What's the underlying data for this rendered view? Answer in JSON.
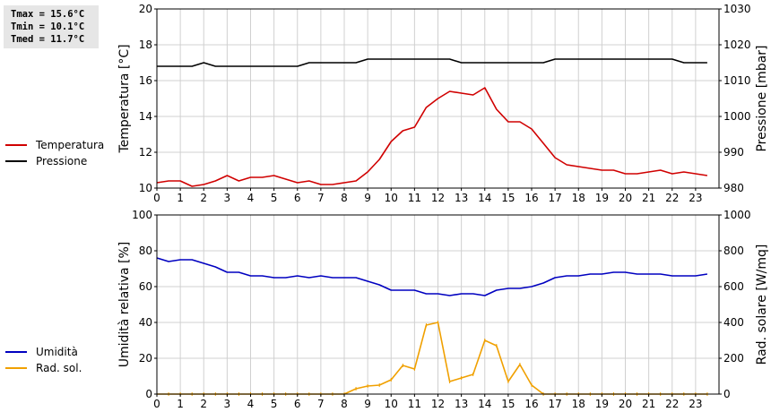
{
  "stats": {
    "tmax": "Tmax = 15.6°C",
    "tmin": "Tmin = 10.1°C",
    "tmed": "Tmed = 11.7°C"
  },
  "colors": {
    "temperature": "#d00000",
    "pressure": "#000000",
    "humidity": "#0000c0",
    "radiation": "#f0a000",
    "grid": "#d0d0d0"
  },
  "legend_top": [
    {
      "label": "Temperatura",
      "color": "#d00000"
    },
    {
      "label": "Pressione",
      "color": "#000000"
    }
  ],
  "legend_bottom": [
    {
      "label": "Umidità",
      "color": "#0000c0"
    },
    {
      "label": "Rad. sol.",
      "color": "#f0a000"
    }
  ],
  "chart_data": [
    {
      "type": "line",
      "xlabel": "",
      "xlim": [
        0,
        24
      ],
      "xticks": [
        "0",
        "1",
        "2",
        "3",
        "4",
        "5",
        "6",
        "7",
        "8",
        "9",
        "10",
        "11",
        "12",
        "13",
        "14",
        "15",
        "16",
        "17",
        "18",
        "19",
        "20",
        "21",
        "22",
        "23"
      ],
      "ylabel": "Temperatura [°C]",
      "ylim": [
        10,
        20
      ],
      "yticks": [
        "10",
        "12",
        "14",
        "16",
        "18",
        "20"
      ],
      "y2label": "Pressione [mbar]",
      "y2lim": [
        980,
        1030
      ],
      "y2ticks": [
        "980",
        "990",
        "1000",
        "1010",
        "1020",
        "1030"
      ],
      "grid": true,
      "legend": "left",
      "series": [
        {
          "name": "Temperatura",
          "axis": "left",
          "x": [
            0,
            0.5,
            1,
            1.5,
            2,
            2.5,
            3,
            3.5,
            4,
            4.5,
            5,
            5.5,
            6,
            6.5,
            7,
            7.5,
            8,
            8.5,
            9,
            9.5,
            10,
            10.5,
            11,
            11.5,
            12,
            12.5,
            13,
            13.5,
            14,
            14.5,
            15,
            15.5,
            16,
            16.5,
            17,
            17.5,
            18,
            18.5,
            19,
            19.5,
            20,
            20.5,
            21,
            21.5,
            22,
            22.5,
            23,
            23.5
          ],
          "values": [
            10.3,
            10.4,
            10.4,
            10.1,
            10.2,
            10.4,
            10.7,
            10.4,
            10.6,
            10.6,
            10.7,
            10.5,
            10.3,
            10.4,
            10.2,
            10.2,
            10.3,
            10.4,
            10.9,
            11.6,
            12.6,
            13.2,
            13.4,
            14.5,
            15.0,
            15.4,
            15.3,
            15.2,
            15.6,
            14.4,
            13.7,
            13.7,
            13.3,
            12.5,
            11.7,
            11.3,
            11.2,
            11.1,
            11.0,
            11.0,
            10.8,
            10.8,
            10.9,
            11.0,
            10.8,
            10.9,
            10.8,
            10.7
          ]
        },
        {
          "name": "Pressione",
          "axis": "right",
          "x": [
            0,
            0.5,
            1,
            1.5,
            2,
            2.5,
            3,
            3.5,
            4,
            4.5,
            5,
            5.5,
            6,
            6.5,
            7,
            7.5,
            8,
            8.5,
            9,
            9.5,
            10,
            10.5,
            11,
            11.5,
            12,
            12.5,
            13,
            13.5,
            14,
            14.5,
            15,
            15.5,
            16,
            16.5,
            17,
            17.5,
            18,
            18.5,
            19,
            19.5,
            20,
            20.5,
            21,
            21.5,
            22,
            22.5,
            23,
            23.5
          ],
          "values": [
            1014,
            1014,
            1014,
            1014,
            1015,
            1014,
            1014,
            1014,
            1014,
            1014,
            1014,
            1014,
            1014,
            1015,
            1015,
            1015,
            1015,
            1015,
            1016,
            1016,
            1016,
            1016,
            1016,
            1016,
            1016,
            1016,
            1015,
            1015,
            1015,
            1015,
            1015,
            1015,
            1015,
            1015,
            1016,
            1016,
            1016,
            1016,
            1016,
            1016,
            1016,
            1016,
            1016,
            1016,
            1016,
            1015,
            1015,
            1015
          ]
        }
      ]
    },
    {
      "type": "line",
      "xlabel": "",
      "xlim": [
        0,
        24
      ],
      "xticks": [
        "0",
        "1",
        "2",
        "3",
        "4",
        "5",
        "6",
        "7",
        "8",
        "9",
        "10",
        "11",
        "12",
        "13",
        "14",
        "15",
        "16",
        "17",
        "18",
        "19",
        "20",
        "21",
        "22",
        "23"
      ],
      "ylabel": "Umidità relativa [%]",
      "ylim": [
        0,
        100
      ],
      "yticks": [
        "0",
        "20",
        "40",
        "60",
        "80",
        "100"
      ],
      "y2label": "Rad. solare [W/mq]",
      "y2lim": [
        0,
        1000
      ],
      "y2ticks": [
        "0",
        "200",
        "400",
        "600",
        "800",
        "1000"
      ],
      "grid": true,
      "legend": "left",
      "series": [
        {
          "name": "Umidità",
          "axis": "left",
          "x": [
            0,
            0.5,
            1,
            1.5,
            2,
            2.5,
            3,
            3.5,
            4,
            4.5,
            5,
            5.5,
            6,
            6.5,
            7,
            7.5,
            8,
            8.5,
            9,
            9.5,
            10,
            10.5,
            11,
            11.5,
            12,
            12.5,
            13,
            13.5,
            14,
            14.5,
            15,
            15.5,
            16,
            16.5,
            17,
            17.5,
            18,
            18.5,
            19,
            19.5,
            20,
            20.5,
            21,
            21.5,
            22,
            22.5,
            23,
            23.5
          ],
          "values": [
            76,
            74,
            75,
            75,
            73,
            71,
            68,
            68,
            66,
            66,
            65,
            65,
            66,
            65,
            66,
            65,
            65,
            65,
            63,
            61,
            58,
            58,
            58,
            56,
            56,
            55,
            56,
            56,
            55,
            58,
            59,
            59,
            60,
            62,
            65,
            66,
            66,
            67,
            67,
            68,
            68,
            67,
            67,
            67,
            66,
            66,
            66,
            67
          ]
        },
        {
          "name": "Rad. sol.",
          "axis": "right",
          "x": [
            0,
            0.5,
            1,
            1.5,
            2,
            2.5,
            3,
            3.5,
            4,
            4.5,
            5,
            5.5,
            6,
            6.5,
            7,
            7.5,
            8,
            8.5,
            9,
            9.5,
            10,
            10.5,
            11,
            11.5,
            12,
            12.5,
            13,
            13.5,
            14,
            14.5,
            15,
            15.5,
            16,
            16.5,
            17,
            17.5,
            18,
            18.5,
            19,
            19.5,
            20,
            20.5,
            21,
            21.5,
            22,
            22.5,
            23,
            23.5
          ],
          "values": [
            0,
            0,
            0,
            0,
            0,
            0,
            0,
            0,
            0,
            0,
            0,
            0,
            0,
            0,
            0,
            0,
            0,
            30,
            45,
            50,
            80,
            160,
            140,
            385,
            400,
            70,
            90,
            110,
            300,
            270,
            70,
            165,
            50,
            0,
            0,
            0,
            0,
            0,
            0,
            0,
            0,
            0,
            0,
            0,
            0,
            0,
            0,
            0
          ]
        }
      ]
    }
  ]
}
